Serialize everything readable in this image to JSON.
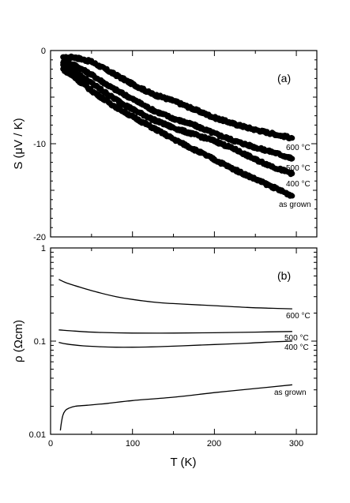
{
  "chart_data": [
    {
      "type": "scatter",
      "panel_label": "(a)",
      "ylabel": "S (μV / K)",
      "xlim": [
        0,
        325
      ],
      "ylim": [
        -20,
        0
      ],
      "y_ticks": [
        "0",
        "-10",
        "-20"
      ],
      "series": [
        {
          "name": "600 °C",
          "x": [
            15,
            28,
            50,
            75,
            100,
            125,
            150,
            175,
            200,
            225,
            250,
            275,
            295
          ],
          "y": [
            -0.8,
            -0.7,
            -1.2,
            -2.4,
            -3.6,
            -4.7,
            -5.4,
            -6.3,
            -7.2,
            -7.9,
            -8.5,
            -9.0,
            -9.4
          ]
        },
        {
          "name": "500 °C",
          "x": [
            15,
            28,
            50,
            75,
            100,
            125,
            150,
            175,
            200,
            225,
            250,
            275,
            295
          ],
          "y": [
            -1.2,
            -1.5,
            -2.6,
            -4.0,
            -5.2,
            -6.4,
            -7.3,
            -8.0,
            -8.9,
            -9.7,
            -10.4,
            -11.0,
            -11.6
          ]
        },
        {
          "name": "400 °C",
          "x": [
            15,
            28,
            50,
            75,
            100,
            125,
            150,
            175,
            200,
            225,
            250,
            275,
            295
          ],
          "y": [
            -1.5,
            -2.2,
            -3.5,
            -5.0,
            -6.3,
            -7.4,
            -8.3,
            -9.0,
            -9.7,
            -10.6,
            -11.7,
            -12.6,
            -13.2
          ]
        },
        {
          "name": "as grown",
          "x": [
            15,
            28,
            50,
            75,
            100,
            125,
            150,
            175,
            200,
            225,
            250,
            275,
            295
          ],
          "y": [
            -2.0,
            -2.8,
            -4.3,
            -5.8,
            -7.1,
            -8.3,
            -9.5,
            -10.6,
            -11.7,
            -12.8,
            -13.8,
            -14.8,
            -15.6
          ]
        }
      ]
    },
    {
      "type": "line",
      "panel_label": "(b)",
      "xlabel": "T (K)",
      "ylabel": "ρ (Ωcm)",
      "xlim": [
        0,
        325
      ],
      "ylim": [
        0.01,
        1
      ],
      "y_scale": "log",
      "x_ticks": [
        "0",
        "100",
        "200",
        "300"
      ],
      "y_ticks": [
        "1",
        "0.1",
        "0.01"
      ],
      "series": [
        {
          "name": "600 °C",
          "x": [
            10,
            20,
            40,
            60,
            80,
            100,
            130,
            160,
            200,
            240,
            270,
            295
          ],
          "y": [
            0.46,
            0.42,
            0.37,
            0.33,
            0.3,
            0.28,
            0.26,
            0.25,
            0.24,
            0.23,
            0.225,
            0.222
          ]
        },
        {
          "name": "500 °C",
          "x": [
            10,
            30,
            60,
            100,
            150,
            200,
            250,
            295
          ],
          "y": [
            0.132,
            0.128,
            0.124,
            0.122,
            0.122,
            0.123,
            0.125,
            0.127
          ]
        },
        {
          "name": "400 °C",
          "x": [
            10,
            20,
            40,
            60,
            80,
            100,
            130,
            160,
            200,
            240,
            270,
            295
          ],
          "y": [
            0.097,
            0.093,
            0.089,
            0.087,
            0.086,
            0.086,
            0.087,
            0.089,
            0.092,
            0.095,
            0.098,
            0.1
          ]
        },
        {
          "name": "as grown",
          "x": [
            12,
            13,
            15,
            18,
            22,
            30,
            45,
            70,
            100,
            150,
            200,
            250,
            295
          ],
          "y": [
            0.011,
            0.013,
            0.016,
            0.018,
            0.019,
            0.02,
            0.0205,
            0.0215,
            0.023,
            0.025,
            0.028,
            0.031,
            0.034
          ]
        }
      ]
    }
  ]
}
